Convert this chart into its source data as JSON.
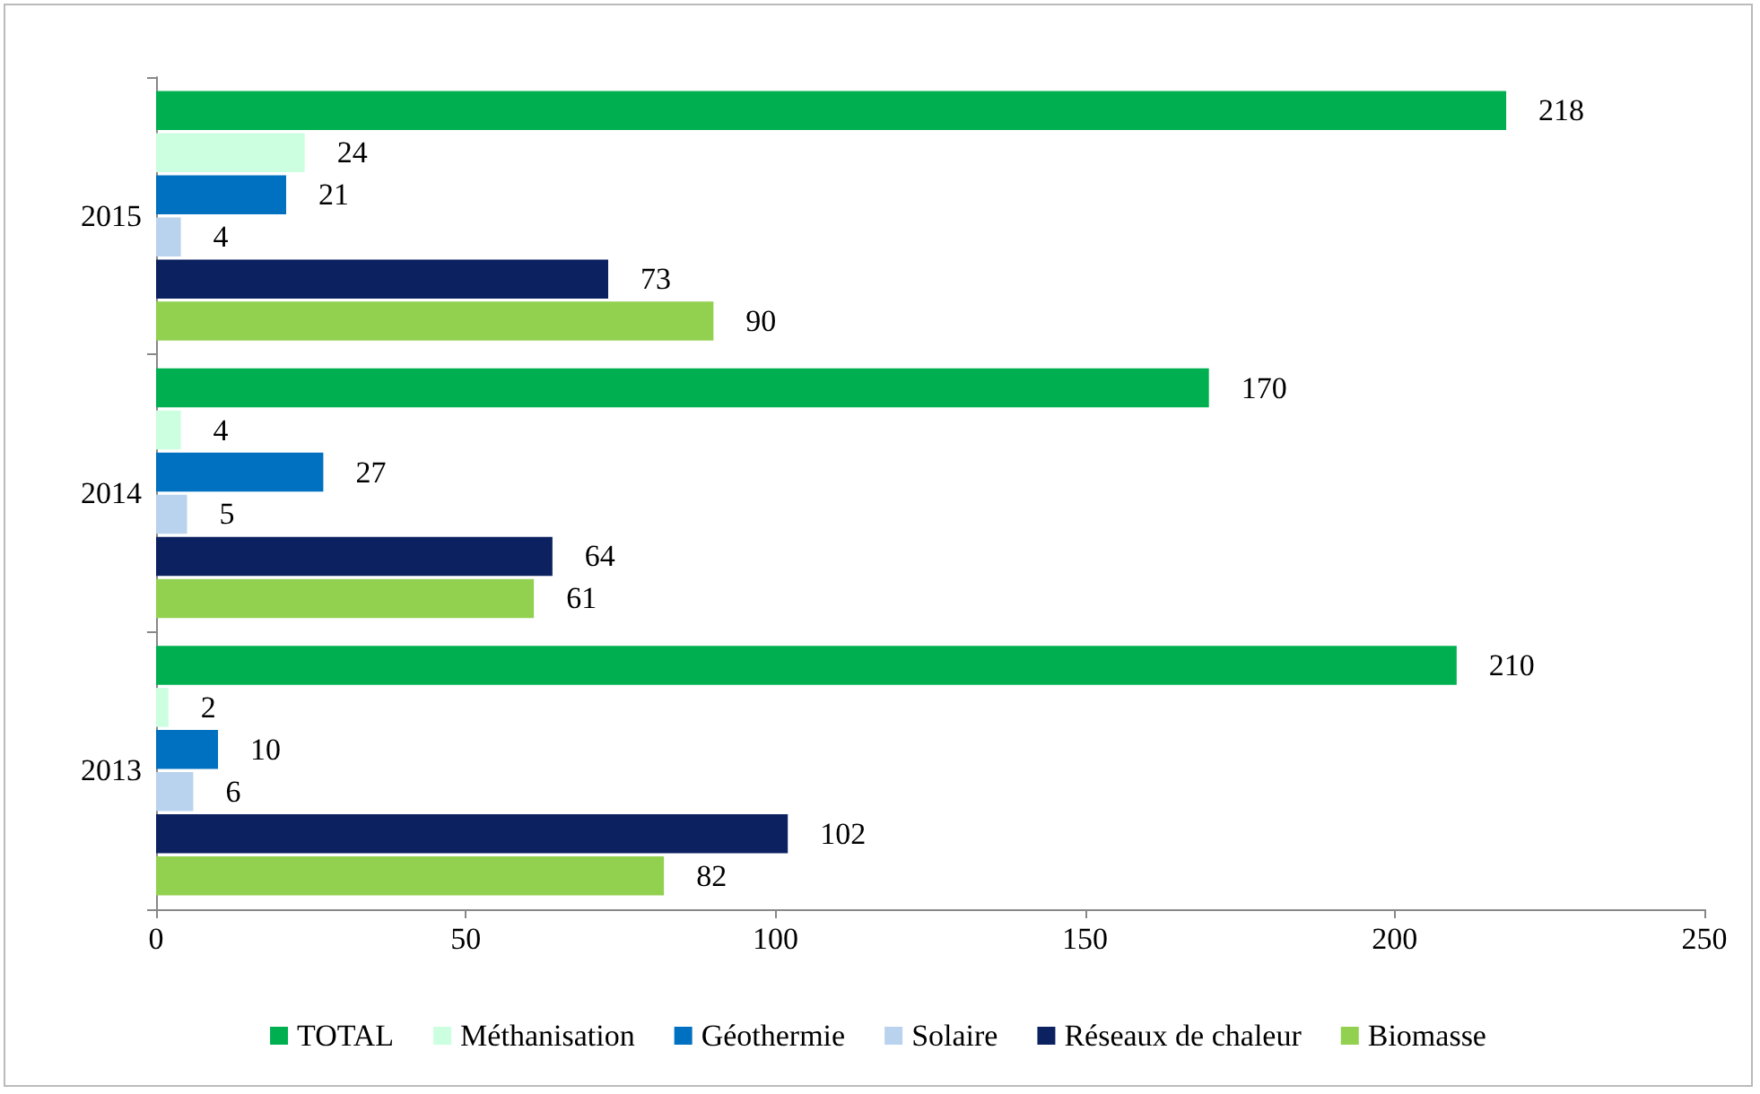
{
  "chart_data": {
    "type": "bar",
    "orientation": "horizontal",
    "categories": [
      "2015",
      "2014",
      "2013"
    ],
    "series": [
      {
        "name": "TOTAL",
        "color": "#00b050",
        "values": [
          218,
          170,
          210
        ]
      },
      {
        "name": "Méthanisation",
        "color": "#ccffe0",
        "values": [
          24,
          4,
          2
        ]
      },
      {
        "name": "Géothermie",
        "color": "#0070c0",
        "values": [
          21,
          27,
          10
        ]
      },
      {
        "name": "Solaire",
        "color": "#b9d3ee",
        "values": [
          4,
          5,
          6
        ]
      },
      {
        "name": "Réseaux de chaleur",
        "color": "#0c2160",
        "values": [
          73,
          64,
          102
        ]
      },
      {
        "name": "Biomasse",
        "color": "#92d050",
        "values": [
          90,
          61,
          82
        ]
      }
    ],
    "xlim": [
      0,
      250
    ],
    "xticks": [
      0,
      50,
      100,
      150,
      200,
      250
    ],
    "data_labels": true,
    "grid": false,
    "legend": "bottom"
  }
}
